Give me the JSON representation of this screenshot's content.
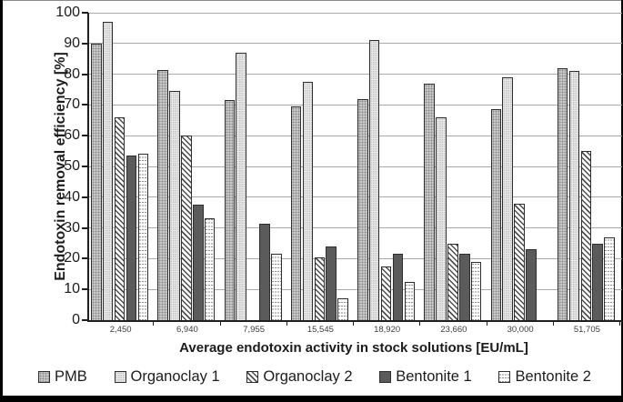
{
  "chart_data": {
    "type": "bar",
    "title": "",
    "xlabel": "Average endotoxin activity in stock solutions [EU/mL]",
    "ylabel": "Endotoxin removal efficiency [%]",
    "categories": [
      "2,450",
      "6,940",
      "7,955",
      "15,545",
      "18,920",
      "23,660",
      "30,000",
      "51,705"
    ],
    "series": [
      {
        "name": "PMB",
        "values": [
          90,
          81.5,
          71.5,
          69.5,
          72,
          77,
          68.5,
          82
        ]
      },
      {
        "name": "Organoclay 1",
        "values": [
          97,
          74.5,
          87,
          77.5,
          91,
          66,
          79,
          81
        ]
      },
      {
        "name": "Organoclay 2",
        "values": [
          66,
          60,
          null,
          20.5,
          17.5,
          25,
          38,
          55
        ]
      },
      {
        "name": "Bentonite 1",
        "values": [
          53.5,
          37.5,
          31.5,
          24,
          21.5,
          21.5,
          23,
          25
        ]
      },
      {
        "name": "Bentonite 2",
        "values": [
          54,
          33,
          21.5,
          7,
          12.5,
          19,
          null,
          27
        ]
      }
    ],
    "ylim": [
      0,
      100
    ],
    "yticks": [
      0,
      10,
      20,
      30,
      40,
      50,
      60,
      70,
      80,
      90,
      100
    ],
    "grid": true,
    "legend_position": "bottom"
  },
  "colors": {
    "axis": "#1f1f1f",
    "grid": "#a9a9a9",
    "bar_border": "#2e2e2e",
    "pmb_fill": "#c7c7c7",
    "pmb_dot": "#8d8d8d",
    "organoclay1_fill": "#e9e9e9",
    "organoclay1_dot": "#c2c2c2",
    "organoclay2_fill": "#fbfbfb",
    "organoclay2_line": "#4f4f4f",
    "bentonite1_fill": "#5b5b5b",
    "bentonite2_fill": "#fcfcfc",
    "bentonite2_line": "#8f8f8f",
    "text": "#1c1c1c",
    "tick_label": "#3c3c3c",
    "figure_border": "#000000"
  }
}
